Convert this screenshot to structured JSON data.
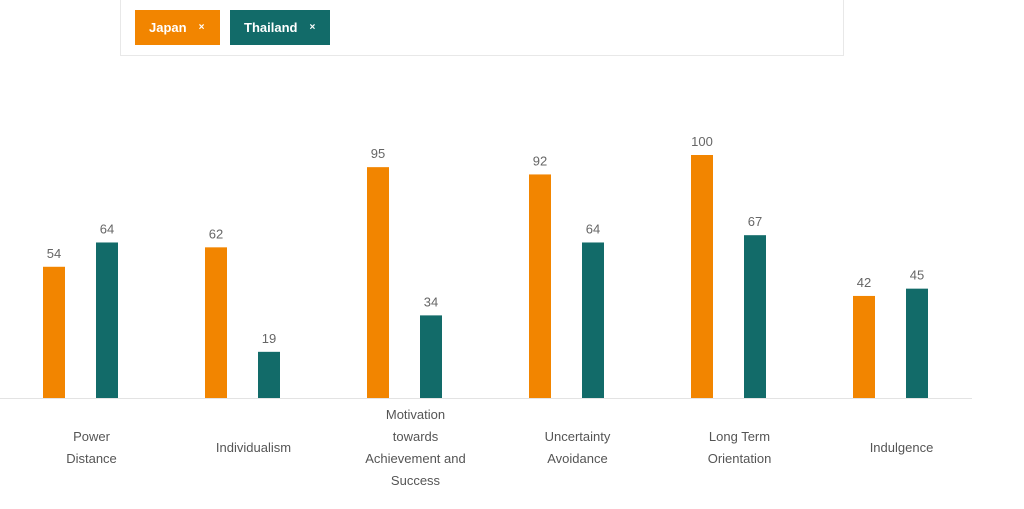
{
  "filters": [
    {
      "label": "Japan",
      "remove_glyph": "×",
      "color": "#F28500"
    },
    {
      "label": "Thailand",
      "remove_glyph": "×",
      "color": "#126B69"
    }
  ],
  "chart_data": {
    "type": "bar",
    "title": "",
    "xlabel": "",
    "ylabel": "",
    "ylim": [
      0,
      100
    ],
    "grid": false,
    "categories": [
      [
        "Power",
        "Distance"
      ],
      [
        "Individualism"
      ],
      [
        "Motivation",
        "towards",
        "Achievement and",
        "Success"
      ],
      [
        "Uncertainty",
        "Avoidance"
      ],
      [
        "Long Term",
        "Orientation"
      ],
      [
        "Indulgence"
      ]
    ],
    "series": [
      {
        "name": "Japan",
        "color": "#F28500",
        "values": [
          54,
          62,
          95,
          92,
          100,
          42
        ]
      },
      {
        "name": "Thailand",
        "color": "#126B69",
        "values": [
          64,
          19,
          34,
          64,
          67,
          45
        ]
      }
    ]
  }
}
